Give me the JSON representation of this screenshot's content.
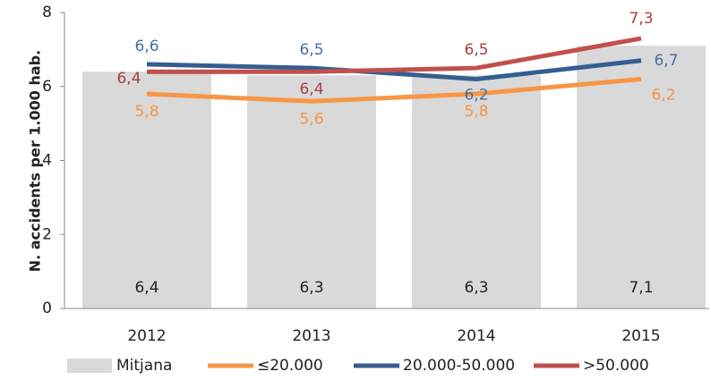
{
  "chart_data": {
    "type": "bar-line",
    "y_label": "N. accidents per 1.000 hab.",
    "categories": [
      "2012",
      "2013",
      "2014",
      "2015"
    ],
    "series": [
      {
        "name": "Mitjana",
        "kind": "bar",
        "color": "#d9d9d9",
        "values": [
          6.4,
          6.3,
          6.3,
          7.1
        ],
        "value_labels": [
          "6,4",
          "6,3",
          "6,3",
          "7,1"
        ]
      },
      {
        "name": "≤20.000",
        "kind": "line",
        "color": "#f79646",
        "values": [
          5.8,
          5.6,
          5.8,
          6.2
        ],
        "value_labels": [
          "5,8",
          "5,6",
          "5,8",
          "6,2"
        ]
      },
      {
        "name": "20.000-50.000",
        "kind": "line",
        "color": "#355e91",
        "values": [
          6.6,
          6.5,
          6.2,
          6.7
        ],
        "value_labels": [
          "6,6",
          "6,5",
          "6,2",
          "6,7"
        ]
      },
      {
        "name": ">50.000",
        "kind": "line",
        "color": "#c0504d",
        "values": [
          6.4,
          6.4,
          6.5,
          7.3
        ],
        "value_labels": [
          "6,4",
          "6,4",
          "6,5",
          "7,3"
        ]
      }
    ],
    "ylim": [
      0,
      8
    ],
    "yticks": [
      0,
      2,
      4,
      6,
      8
    ],
    "legend": "bottom"
  }
}
